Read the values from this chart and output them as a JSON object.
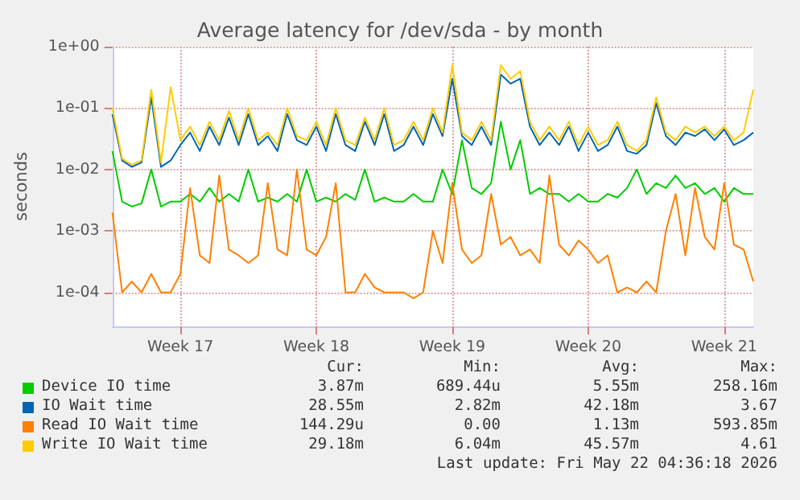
{
  "chart_data": {
    "type": "line",
    "title": "Average latency for /dev/sda - by month",
    "ylabel": "seconds",
    "log": "y",
    "grid": "xy",
    "legend": "bottom",
    "marker": "none",
    "line_style": "solid",
    "categories": [
      null,
      null,
      null,
      null,
      null,
      null,
      null,
      "Week 17",
      null,
      null,
      null,
      null,
      null,
      null,
      null,
      null,
      null,
      null,
      null,
      null,
      null,
      "Week 18",
      null,
      null,
      null,
      null,
      null,
      null,
      null,
      null,
      null,
      null,
      null,
      null,
      null,
      "Week 19",
      null,
      null,
      null,
      null,
      null,
      null,
      null,
      null,
      null,
      null,
      null,
      null,
      null,
      "Week 20",
      null,
      null,
      null,
      null,
      null,
      null,
      null,
      null,
      null,
      null,
      null,
      null,
      null,
      "Week 21",
      null,
      null,
      null
    ],
    "ylim": [
      2.8e-05,
      1
    ],
    "yticks": [
      {
        "value": 0.0001,
        "label": "1e-04"
      },
      {
        "value": 0.001,
        "label": "1e-03"
      },
      {
        "value": 0.01,
        "label": "1e-02"
      },
      {
        "value": 0.1,
        "label": "1e-01"
      },
      {
        "value": 1,
        "label": "1e+00"
      }
    ],
    "series": [
      {
        "name": "Device IO time",
        "color": "#00cc00",
        "values": [
          0.02,
          0.003,
          0.0025,
          0.0028,
          0.01,
          0.0025,
          0.003,
          0.003,
          0.004,
          0.003,
          0.005,
          0.003,
          0.004,
          0.003,
          0.01,
          0.003,
          0.0035,
          0.003,
          0.004,
          0.003,
          0.01,
          0.003,
          0.0035,
          0.003,
          0.004,
          0.0032,
          0.01,
          0.003,
          0.0035,
          0.003,
          0.003,
          0.004,
          0.003,
          0.003,
          0.01,
          0.004,
          0.03,
          0.005,
          0.004,
          0.006,
          0.06,
          0.01,
          0.03,
          0.004,
          0.005,
          0.004,
          0.004,
          0.003,
          0.004,
          0.003,
          0.003,
          0.004,
          0.0035,
          0.005,
          0.01,
          0.004,
          0.006,
          0.005,
          0.008,
          0.005,
          0.006,
          0.004,
          0.005,
          0.003,
          0.005,
          0.004,
          0.004
        ]
      },
      {
        "name": "IO Wait time",
        "color": "#0066b3",
        "values": [
          0.08,
          0.014,
          0.011,
          0.013,
          0.15,
          0.011,
          0.014,
          0.025,
          0.04,
          0.02,
          0.05,
          0.025,
          0.07,
          0.025,
          0.08,
          0.025,
          0.035,
          0.02,
          0.08,
          0.03,
          0.025,
          0.05,
          0.02,
          0.08,
          0.025,
          0.02,
          0.06,
          0.025,
          0.08,
          0.02,
          0.025,
          0.05,
          0.025,
          0.08,
          0.035,
          0.3,
          0.035,
          0.025,
          0.05,
          0.025,
          0.35,
          0.25,
          0.3,
          0.05,
          0.025,
          0.04,
          0.025,
          0.05,
          0.02,
          0.04,
          0.02,
          0.025,
          0.05,
          0.02,
          0.018,
          0.025,
          0.12,
          0.035,
          0.025,
          0.04,
          0.035,
          0.045,
          0.03,
          0.045,
          0.025,
          0.03,
          0.04
        ]
      },
      {
        "name": "Read IO Wait time",
        "color": "#ff8000",
        "values": [
          0.002,
          0.0001,
          0.00015,
          0.0001,
          0.0002,
          0.0001,
          0.0001,
          0.0002,
          0.005,
          0.0004,
          0.0003,
          0.008,
          0.0005,
          0.0004,
          0.0003,
          0.0004,
          0.006,
          0.0005,
          0.0004,
          0.01,
          0.0005,
          0.0004,
          0.0008,
          0.006,
          0.0001,
          0.0001,
          0.0002,
          0.00012,
          0.0001,
          0.0001,
          0.0001,
          8e-05,
          0.0001,
          0.001,
          0.0003,
          0.006,
          0.0005,
          0.0003,
          0.0004,
          0.004,
          0.0006,
          0.0008,
          0.0004,
          0.0005,
          0.0003,
          0.008,
          0.0006,
          0.0004,
          0.0007,
          0.0005,
          0.0003,
          0.0004,
          0.0001,
          0.00012,
          0.0001,
          0.00015,
          0.0001,
          0.001,
          0.004,
          0.0004,
          0.005,
          0.0008,
          0.0005,
          0.006,
          0.0006,
          0.0005,
          0.00015
        ]
      },
      {
        "name": "Write IO Wait time",
        "color": "#ffcc00",
        "values": [
          0.1,
          0.015,
          0.012,
          0.014,
          0.2,
          0.013,
          0.22,
          0.03,
          0.05,
          0.025,
          0.06,
          0.03,
          0.09,
          0.03,
          0.1,
          0.03,
          0.04,
          0.025,
          0.1,
          0.035,
          0.03,
          0.06,
          0.025,
          0.1,
          0.03,
          0.025,
          0.07,
          0.03,
          0.1,
          0.025,
          0.03,
          0.06,
          0.03,
          0.1,
          0.04,
          0.5,
          0.04,
          0.03,
          0.06,
          0.03,
          0.5,
          0.3,
          0.4,
          0.06,
          0.03,
          0.05,
          0.03,
          0.06,
          0.025,
          0.05,
          0.025,
          0.03,
          0.06,
          0.025,
          0.02,
          0.03,
          0.15,
          0.04,
          0.03,
          0.05,
          0.04,
          0.05,
          0.035,
          0.05,
          0.03,
          0.04,
          0.2
        ]
      }
    ],
    "annotations": [
      "Cur:",
      "Min:",
      "Avg:",
      "Max:",
      "3.87m",
      "689.44u",
      "5.55m",
      "258.16m",
      "28.55m",
      "2.82m",
      "42.18m",
      "3.67",
      "144.29u",
      "0.00",
      "1.13m",
      "593.85m",
      "29.18m",
      "6.04m",
      "45.57m",
      "4.61",
      "Last update: Fri May 22 04:36:18 2026"
    ]
  }
}
